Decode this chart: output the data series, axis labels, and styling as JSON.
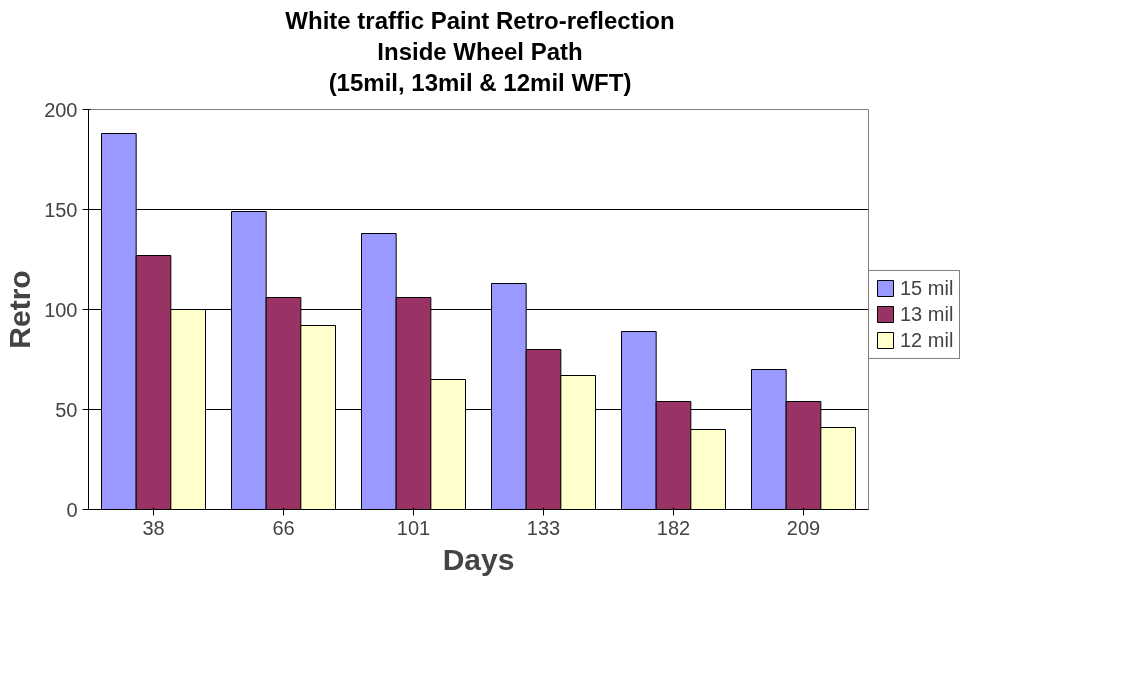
{
  "chart_data": {
    "type": "bar",
    "title": "White traffic Paint Retro-reflection\nInside Wheel Path\n(15mil, 13mil & 12mil WFT)",
    "xlabel": "Days",
    "ylabel": "Retro",
    "categories": [
      "38",
      "66",
      "101",
      "133",
      "182",
      "209"
    ],
    "series": [
      {
        "name": "15 mil",
        "color": "#9999ff",
        "values": [
          188,
          149,
          138,
          113,
          89,
          70
        ]
      },
      {
        "name": "13 mil",
        "color": "#993366",
        "values": [
          127,
          106,
          106,
          80,
          54,
          54
        ]
      },
      {
        "name": "12 mil",
        "color": "#ffffcc",
        "values": [
          100,
          92,
          65,
          67,
          40,
          41
        ]
      }
    ],
    "ylim": [
      0,
      200
    ],
    "yticks": [
      0,
      50,
      100,
      150,
      200
    ],
    "grid": "y",
    "legend": "right"
  }
}
